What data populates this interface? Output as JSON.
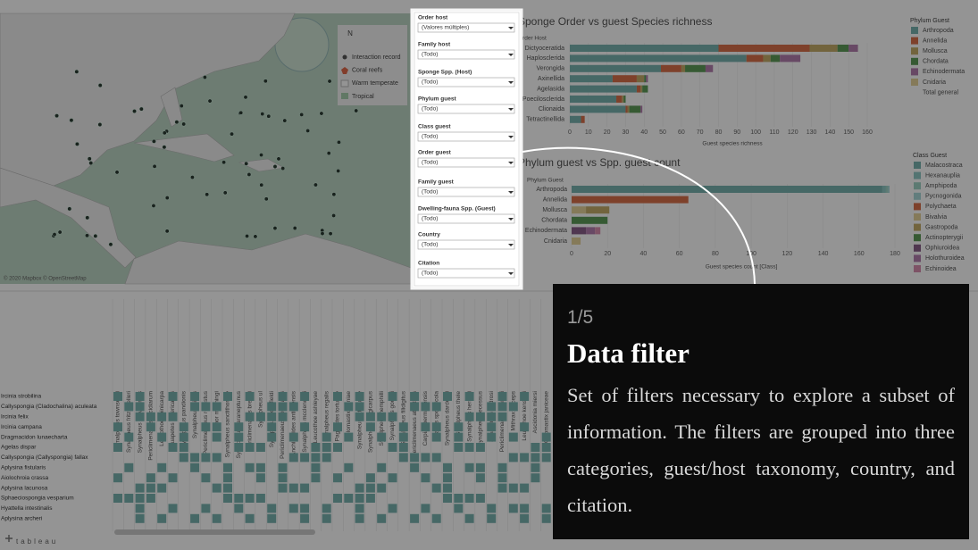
{
  "map": {
    "legend": [
      "Interaction record",
      "Coral reefs",
      "Warm temperate",
      "Tropical"
    ],
    "compass": "N",
    "attribution": "© 2020 Mapbox © OpenStreetMap"
  },
  "filters": [
    {
      "label": "Order host",
      "value": "(Valores múltiples)"
    },
    {
      "label": "Family host",
      "value": "(Todo)"
    },
    {
      "label": "Sponge Spp. (Host)",
      "value": "(Todo)"
    },
    {
      "label": "Phylum guest",
      "value": "(Todo)"
    },
    {
      "label": "Class guest",
      "value": "(Todo)"
    },
    {
      "label": "Order guest",
      "value": "(Todo)"
    },
    {
      "label": "Family guest",
      "value": "(Todo)"
    },
    {
      "label": "Dwelling-fauna Spp. (Guest)",
      "value": "(Todo)"
    },
    {
      "label": "Country",
      "value": "(Todo)"
    },
    {
      "label": "Citation",
      "value": "(Todo)"
    }
  ],
  "chart_data": [
    {
      "type": "stacked-bar",
      "title": "Sponge Order vs guest Species richness",
      "category_header": "Order Host",
      "x_label": "Guest species richness",
      "legend_title": "Phylum Guest",
      "legend_extra": "Total general",
      "categories": [
        "Dictyoceratida",
        "Haplosclerida",
        "Verongida",
        "Axinellida",
        "Agelasida",
        "Poecilosclerida",
        "Clionaida",
        "Tetractinellida"
      ],
      "series": [
        {
          "name": "Arthropoda",
          "color": "#79b3b0",
          "values": [
            80,
            95,
            49,
            23,
            36,
            25,
            30,
            6
          ]
        },
        {
          "name": "Annelida",
          "color": "#d9704a",
          "values": [
            49,
            9,
            11,
            13,
            2,
            3,
            1,
            2
          ]
        },
        {
          "name": "Mollusca",
          "color": "#c4ad6a",
          "values": [
            15,
            4,
            2,
            4,
            1,
            1,
            1,
            0
          ]
        },
        {
          "name": "Chordata",
          "color": "#5d9c58",
          "values": [
            6,
            5,
            11,
            1,
            3,
            1,
            6,
            0
          ]
        },
        {
          "name": "Echinodermata",
          "color": "#b47fae",
          "values": [
            5,
            11,
            4,
            1,
            0,
            0,
            1,
            0
          ]
        },
        {
          "name": "Cnidaria",
          "color": "#e6d39a",
          "values": [
            0,
            0,
            0,
            0,
            0,
            0,
            0,
            0
          ]
        }
      ],
      "xlim": [
        0,
        160
      ],
      "xticks": [
        0,
        10,
        20,
        30,
        40,
        50,
        60,
        70,
        80,
        90,
        100,
        110,
        120,
        130,
        140,
        150,
        160
      ]
    },
    {
      "type": "stacked-bar",
      "title": "Phylum guest vs Spp. guest count",
      "category_header": "Phylum Guest",
      "x_label": "Guest species count [Class]",
      "legend_title": "Class Guest",
      "categories": [
        "Arthropoda",
        "Annelida",
        "Mollusca",
        "Chordata",
        "Echinodermata",
        "Cnidaria"
      ],
      "series": [
        {
          "name": "Malacostraca",
          "color": "#79b3b0",
          "values": [
            173,
            0,
            0,
            0,
            0,
            0
          ]
        },
        {
          "name": "Hexanauplia",
          "color": "#8fc9c4",
          "values": [
            2,
            0,
            0,
            0,
            0,
            0
          ]
        },
        {
          "name": "Amphipoda",
          "color": "#9fd3c4",
          "values": [
            1,
            0,
            0,
            0,
            0,
            0
          ]
        },
        {
          "name": "Pycnogonida",
          "color": "#a9d8d8",
          "values": [
            1,
            0,
            0,
            0,
            0,
            0
          ]
        },
        {
          "name": "Polychaeta",
          "color": "#d9704a",
          "values": [
            0,
            65,
            0,
            0,
            0,
            0
          ]
        },
        {
          "name": "Bivalvia",
          "color": "#e6d39a",
          "values": [
            0,
            0,
            8,
            0,
            0,
            5
          ]
        },
        {
          "name": "Gastropoda",
          "color": "#c4ad6a",
          "values": [
            0,
            0,
            13,
            0,
            0,
            0
          ]
        },
        {
          "name": "Actinopterygii",
          "color": "#5d9c58",
          "values": [
            0,
            0,
            0,
            20,
            0,
            0
          ]
        },
        {
          "name": "Ophiuroidea",
          "color": "#8a5f8a",
          "values": [
            0,
            0,
            0,
            0,
            8,
            0
          ]
        },
        {
          "name": "Holothuroidea",
          "color": "#b47fae",
          "values": [
            0,
            0,
            0,
            0,
            5,
            0
          ]
        },
        {
          "name": "Echinoidea",
          "color": "#d98fb0",
          "values": [
            0,
            0,
            0,
            0,
            3,
            0
          ]
        }
      ],
      "xlim": [
        0,
        180
      ],
      "xticks": [
        0,
        20,
        40,
        60,
        80,
        100,
        120,
        140,
        160,
        180
      ]
    }
  ],
  "matrix": {
    "columns": [
      "Synalpheus townsendi",
      "Synalpheus fritzmuelleri",
      "Synalpheus brevicarpus",
      "Periclimenaeus ascidiarum",
      "Leucothoe spinicarpa",
      "Cuapetes americanus",
      "Synalpheus pandionis",
      "Synalpheus minus",
      "Periclimenaeus robustus",
      "Thor manningi",
      "Synalpheus sanctithomae",
      "Synalpheus paraneptunus",
      "Periclimenaeus bredini",
      "Synalpheus ul",
      "Synalpheus bousfieldi",
      "Periclimenaeus pectinatus",
      "Anchistioides antiguensis",
      "Synalpheus mcclendoni",
      "Leucothoe ashleyae",
      "Synalpheus regalis",
      "Paguristes tortugae",
      "Colomastix irciniae",
      "Synalpheus rathbunae",
      "Synalpheus longicarpus",
      "Synalpheus hemphilli",
      "Synalpheus goodei",
      "Synalpheus filidigitus",
      "Periclimenaeus atlanticus",
      "Carpias bermudensis",
      "Balanus spongicola",
      "Synalpheus dardeaui",
      "Synalpheus thele",
      "Synalpheus herricki",
      "Synalpheus recessus",
      "Synalpheus androsi",
      "Periclimenaeus schmitti",
      "Mithrax forceps",
      "Leucothoe kensleyi",
      "Ascidonia miersi",
      "Colomastix janiceae"
    ],
    "rows": [
      "Ircinia strobilina",
      "Callyspongia (Cladochalina) aculeata",
      "Ircinia felix",
      "Ircinia campana",
      "Dragmacidon lunaecharta",
      "Agelas dispar",
      "Callyspongia (Callyspongia) fallax",
      "Aplysina fistularis",
      "Aiolochroia crassa",
      "Aplysina lacunosa",
      "Sphaeciospongia vesparium",
      "Hyattella intestinalis",
      "Aplysina archeri"
    ]
  },
  "footer": "tableau",
  "tooltip": {
    "step": "1/5",
    "title": "Data filter",
    "body": "Set of filters necessary to explore a subset of information. The filters are grouped into three categories, guest/host taxonomy, country, and citation."
  }
}
